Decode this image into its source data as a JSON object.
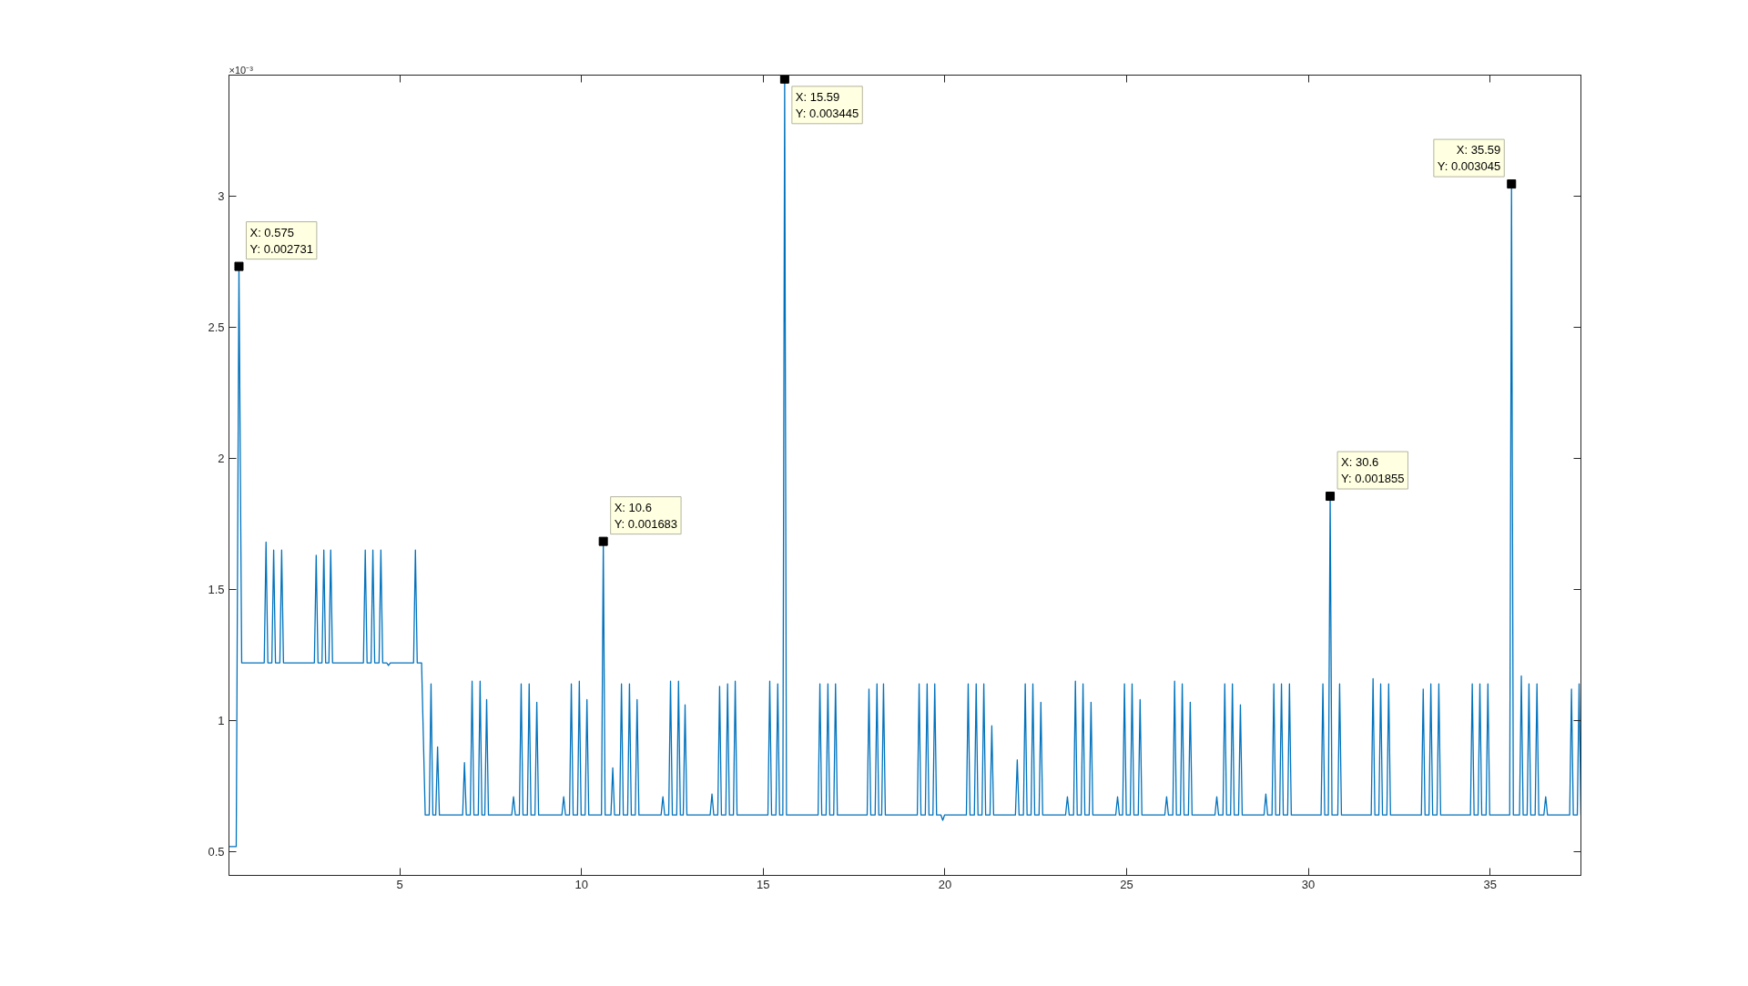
{
  "chart_data": {
    "type": "line",
    "xlim": [
      0.3,
      37.5
    ],
    "ylim": [
      0.41,
      3.46
    ],
    "xticks": [
      5,
      10,
      15,
      20,
      25,
      30,
      35
    ],
    "yticks": [
      0.5,
      1,
      1.5,
      2,
      2.5,
      3
    ],
    "grid": false,
    "marker": "none",
    "line_style": "solid",
    "annotations": [
      "×10⁻³",
      {
        "text": "X: 0.575\nY: 0.002731",
        "x": 0.575,
        "y": 2.731
      },
      {
        "text": "X: 10.6\nY: 0.001683",
        "x": 10.6,
        "y": 1.683
      },
      {
        "text": "X: 15.59\nY: 0.003445",
        "x": 15.59,
        "y": 3.445
      },
      {
        "text": "X: 30.6\nY: 0.001855",
        "x": 30.6,
        "y": 1.855
      },
      {
        "text": "X: 35.59\nY: 0.003045",
        "x": 35.59,
        "y": 3.045
      }
    ],
    "series": [
      {
        "color": "#0072bd",
        "x": [
          0.3,
          0.5,
          0.575,
          0.65,
          1.27,
          1.32,
          1.37,
          1.48,
          1.53,
          1.58,
          1.7,
          1.75,
          1.8,
          2.65,
          2.7,
          2.75,
          2.86,
          2.91,
          2.96,
          3.05,
          3.1,
          3.15,
          4.0,
          4.05,
          4.1,
          4.21,
          4.26,
          4.31,
          4.43,
          4.48,
          4.53,
          4.64,
          4.69,
          4.74,
          5.38,
          5.43,
          5.48,
          5.6,
          5.7,
          5.81,
          5.86,
          5.91,
          5.99,
          6.04,
          6.09,
          6.73,
          6.78,
          6.83,
          6.94,
          6.99,
          7.04,
          7.16,
          7.21,
          7.26,
          7.34,
          7.39,
          7.44,
          8.08,
          8.13,
          8.18,
          8.29,
          8.34,
          8.39,
          8.51,
          8.56,
          8.61,
          8.72,
          8.77,
          8.82,
          9.46,
          9.51,
          9.56,
          9.67,
          9.72,
          9.77,
          9.89,
          9.94,
          9.99,
          10.1,
          10.15,
          10.2,
          10.55,
          10.6,
          10.65,
          10.81,
          10.86,
          10.91,
          11.05,
          11.1,
          11.15,
          11.27,
          11.32,
          11.37,
          11.48,
          11.53,
          11.58,
          12.19,
          12.24,
          12.29,
          12.4,
          12.45,
          12.5,
          12.62,
          12.67,
          12.72,
          12.8,
          12.85,
          12.9,
          13.54,
          13.59,
          13.64,
          13.75,
          13.8,
          13.85,
          13.97,
          14.02,
          14.07,
          14.18,
          14.23,
          14.28,
          15.13,
          15.18,
          15.23,
          15.35,
          15.4,
          15.45,
          15.54,
          15.59,
          15.64,
          16.51,
          16.56,
          16.61,
          16.73,
          16.78,
          16.83,
          16.94,
          16.99,
          17.04,
          17.86,
          17.91,
          17.96,
          18.08,
          18.13,
          18.18,
          18.26,
          18.31,
          18.36,
          19.24,
          19.29,
          19.34,
          19.46,
          19.51,
          19.56,
          19.67,
          19.72,
          19.77,
          19.89,
          19.94,
          19.99,
          20.59,
          20.64,
          20.69,
          20.81,
          20.86,
          20.91,
          21.02,
          21.07,
          21.12,
          21.24,
          21.29,
          21.34,
          21.94,
          21.99,
          22.04,
          22.16,
          22.21,
          22.26,
          22.37,
          22.42,
          22.47,
          22.59,
          22.64,
          22.69,
          23.32,
          23.37,
          23.42,
          23.54,
          23.59,
          23.64,
          23.75,
          23.8,
          23.85,
          23.97,
          24.02,
          24.07,
          24.7,
          24.75,
          24.8,
          24.89,
          24.94,
          24.99,
          25.1,
          25.15,
          25.2,
          25.32,
          25.37,
          25.42,
          26.05,
          26.1,
          26.15,
          26.27,
          26.32,
          26.37,
          26.48,
          26.53,
          26.58,
          26.7,
          26.75,
          26.8,
          27.43,
          27.48,
          27.53,
          27.65,
          27.7,
          27.75,
          27.86,
          27.91,
          27.96,
          28.08,
          28.13,
          28.18,
          28.78,
          28.83,
          28.88,
          29.0,
          29.05,
          29.1,
          29.21,
          29.26,
          29.31,
          29.43,
          29.48,
          29.53,
          30.35,
          30.4,
          30.45,
          30.55,
          30.6,
          30.65,
          30.81,
          30.86,
          30.91,
          31.73,
          31.78,
          31.83,
          31.94,
          31.99,
          32.04,
          32.16,
          32.21,
          32.26,
          33.11,
          33.16,
          33.21,
          33.32,
          33.37,
          33.42,
          33.54,
          33.59,
          33.64,
          34.46,
          34.51,
          34.56,
          34.67,
          34.72,
          34.77,
          34.89,
          34.94,
          34.99,
          35.54,
          35.59,
          35.64,
          35.81,
          35.86,
          35.91,
          36.02,
          36.07,
          36.12,
          36.24,
          36.29,
          36.34,
          36.48,
          36.53,
          36.58,
          37.19,
          37.24,
          37.29,
          37.4,
          37.45,
          37.5
        ],
        "values": [
          0.52,
          0.52,
          2.731,
          1.22,
          1.22,
          1.68,
          1.22,
          1.22,
          1.65,
          1.22,
          1.22,
          1.65,
          1.22,
          1.22,
          1.63,
          1.22,
          1.22,
          1.65,
          1.22,
          1.22,
          1.65,
          1.22,
          1.22,
          1.65,
          1.22,
          1.22,
          1.65,
          1.22,
          1.22,
          1.65,
          1.22,
          1.22,
          1.21,
          1.22,
          1.22,
          1.65,
          1.22,
          1.22,
          0.64,
          0.64,
          1.14,
          0.64,
          0.64,
          0.9,
          0.64,
          0.64,
          0.84,
          0.64,
          0.64,
          1.15,
          0.64,
          0.64,
          1.15,
          0.64,
          0.64,
          1.08,
          0.64,
          0.64,
          0.71,
          0.64,
          0.64,
          1.14,
          0.64,
          0.64,
          1.14,
          0.64,
          0.64,
          1.07,
          0.64,
          0.64,
          0.71,
          0.64,
          0.64,
          1.14,
          0.64,
          0.64,
          1.15,
          0.64,
          0.64,
          1.08,
          0.64,
          0.64,
          1.683,
          0.64,
          0.64,
          0.82,
          0.64,
          0.64,
          1.14,
          0.64,
          0.64,
          1.14,
          0.64,
          0.64,
          1.08,
          0.64,
          0.64,
          0.71,
          0.64,
          0.64,
          1.15,
          0.64,
          0.64,
          1.15,
          0.64,
          0.64,
          1.06,
          0.64,
          0.64,
          0.72,
          0.64,
          0.64,
          1.13,
          0.64,
          0.64,
          1.14,
          0.64,
          0.64,
          1.15,
          0.64,
          0.64,
          1.15,
          0.64,
          0.64,
          1.14,
          0.64,
          0.64,
          3.445,
          0.64,
          0.64,
          1.14,
          0.64,
          0.64,
          1.14,
          0.64,
          0.64,
          1.14,
          0.64,
          0.64,
          1.12,
          0.64,
          0.64,
          1.14,
          0.64,
          0.64,
          1.14,
          0.64,
          0.64,
          1.14,
          0.64,
          0.64,
          1.14,
          0.64,
          0.64,
          1.14,
          0.64,
          0.64,
          0.62,
          0.64,
          0.64,
          1.14,
          0.64,
          0.64,
          1.14,
          0.64,
          0.64,
          1.14,
          0.64,
          0.64,
          0.98,
          0.64,
          0.64,
          0.85,
          0.64,
          0.64,
          1.14,
          0.64,
          0.64,
          1.14,
          0.64,
          0.64,
          1.07,
          0.64,
          0.64,
          0.71,
          0.64,
          0.64,
          1.15,
          0.64,
          0.64,
          1.14,
          0.64,
          0.64,
          1.07,
          0.64,
          0.64,
          0.71,
          0.64,
          0.64,
          1.14,
          0.64,
          0.64,
          1.14,
          0.64,
          0.64,
          1.08,
          0.64,
          0.64,
          0.71,
          0.64,
          0.64,
          1.15,
          0.64,
          0.64,
          1.14,
          0.64,
          0.64,
          1.07,
          0.64,
          0.64,
          0.71,
          0.64,
          0.64,
          1.14,
          0.64,
          0.64,
          1.14,
          0.64,
          0.64,
          1.06,
          0.64,
          0.64,
          0.72,
          0.64,
          0.64,
          1.14,
          0.64,
          0.64,
          1.14,
          0.64,
          0.64,
          1.14,
          0.64,
          0.64,
          1.14,
          0.64,
          0.64,
          1.855,
          0.64,
          0.64,
          1.14,
          0.64,
          0.64,
          1.16,
          0.64,
          0.64,
          1.14,
          0.64,
          0.64,
          1.14,
          0.64,
          0.64,
          1.12,
          0.64,
          0.64,
          1.14,
          0.64,
          0.64,
          1.14,
          0.64,
          0.64,
          1.14,
          0.64,
          0.64,
          1.14,
          0.64,
          0.64,
          1.14,
          0.64,
          0.64,
          3.045,
          0.64,
          0.64,
          1.17,
          0.64,
          0.64,
          1.14,
          0.64,
          0.64,
          1.14,
          0.64,
          0.64,
          0.71,
          0.64,
          0.64,
          1.12,
          0.64,
          0.64,
          1.14,
          0.64
        ]
      }
    ]
  }
}
